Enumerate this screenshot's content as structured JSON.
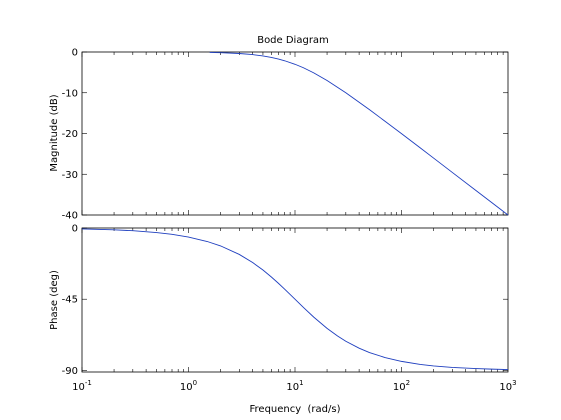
{
  "chart_data": [
    {
      "type": "line",
      "title": "Bode Diagram",
      "xlabel": "Frequency  (rad/s)",
      "ylabel": "Magnitude (dB)",
      "xscale": "log",
      "xlim": [
        0.1,
        1000
      ],
      "ylim": [
        -40,
        0
      ],
      "yticks": [
        0,
        -10,
        -20,
        -30,
        -40
      ],
      "grid": false,
      "series": [
        {
          "color": "#1f3fbf",
          "x": [
            1.58,
            2,
            3,
            4,
            5,
            6,
            7,
            8,
            10,
            12,
            15,
            20,
            30,
            50,
            70,
            100,
            150,
            200,
            300,
            500,
            700,
            1000
          ],
          "y": [
            -0.1,
            -0.17,
            -0.37,
            -0.64,
            -0.97,
            -1.34,
            -1.73,
            -2.15,
            -3.01,
            -3.87,
            -5.12,
            -6.99,
            -10.0,
            -14.15,
            -16.99,
            -20.04,
            -23.53,
            -26.03,
            -29.55,
            -33.98,
            -36.9,
            -40.0
          ]
        }
      ]
    },
    {
      "type": "line",
      "xlabel": "Frequency  (rad/s)",
      "ylabel": "Phase (deg)",
      "xscale": "log",
      "xlim": [
        0.1,
        1000
      ],
      "ylim": [
        -91,
        0
      ],
      "yticks": [
        0,
        -45,
        -90
      ],
      "xticks": [
        "10^-1",
        "10^0",
        "10^1",
        "10^2",
        "10^3"
      ],
      "grid": false,
      "series": [
        {
          "color": "#1f3fbf",
          "x": [
            0.1,
            0.2,
            0.3,
            0.5,
            0.7,
            1,
            1.5,
            2,
            3,
            4,
            5,
            6,
            7,
            8,
            10,
            12,
            15,
            20,
            25,
            30,
            40,
            50,
            70,
            100,
            150,
            200,
            300,
            500,
            700,
            1000
          ],
          "y": [
            -0.57,
            -1.15,
            -1.72,
            -2.86,
            -4.0,
            -5.71,
            -8.53,
            -11.31,
            -16.7,
            -21.8,
            -26.57,
            -30.96,
            -34.99,
            -38.66,
            -45.0,
            -50.19,
            -56.31,
            -63.43,
            -68.2,
            -71.57,
            -75.96,
            -78.69,
            -81.87,
            -84.29,
            -86.19,
            -87.14,
            -88.09,
            -88.85,
            -89.18,
            -89.43
          ]
        }
      ]
    }
  ]
}
